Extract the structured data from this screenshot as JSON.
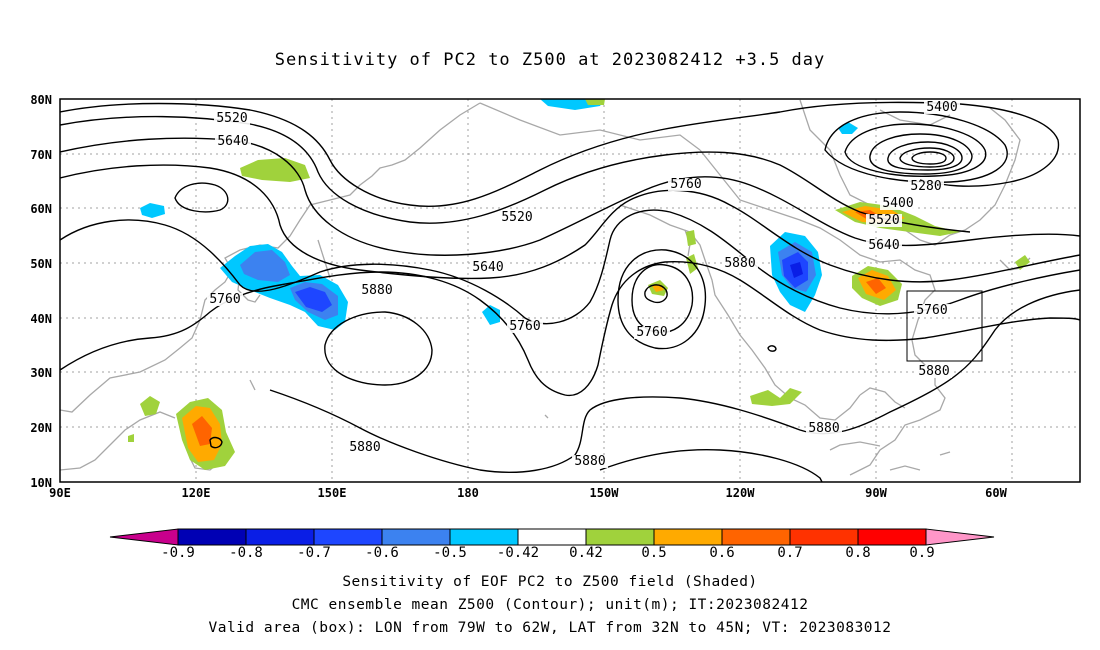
{
  "title": "Sensitivity of PC2 to Z500 at 2023082412 +3.5 day",
  "lat_labels": [
    "80N",
    "70N",
    "60N",
    "50N",
    "40N",
    "30N",
    "20N",
    "10N"
  ],
  "lon_labels": [
    "90E",
    "120E",
    "150E",
    "180",
    "150W",
    "120W",
    "90W",
    "60W"
  ],
  "colorbar": {
    "labels": [
      "-0.9",
      "-0.8",
      "-0.7",
      "-0.6",
      "-0.5",
      "-0.42",
      "0.42",
      "0.5",
      "0.6",
      "0.7",
      "0.8",
      "0.9"
    ],
    "colors": [
      "#c8008c",
      "#0000b4",
      "#0a1ee6",
      "#1e46ff",
      "#3c82f0",
      "#00c8ff",
      "#ffffff",
      "#a0d23c",
      "#ffaa00",
      "#ff6400",
      "#ff3200",
      "#ff0000",
      "#ff96c8"
    ]
  },
  "contour_labels": [
    {
      "text": "5520"
    },
    {
      "text": "5640"
    },
    {
      "text": "5520"
    },
    {
      "text": "5640"
    },
    {
      "text": "5760"
    },
    {
      "text": "5760"
    },
    {
      "text": "5880"
    },
    {
      "text": "5760"
    },
    {
      "text": "5760"
    },
    {
      "text": "5880"
    },
    {
      "text": "5880"
    },
    {
      "text": "5880"
    },
    {
      "text": "5400"
    },
    {
      "text": "5280"
    },
    {
      "text": "5400"
    },
    {
      "text": "5520"
    },
    {
      "text": "5640"
    },
    {
      "text": "5760"
    },
    {
      "text": "5880"
    },
    {
      "text": "5880"
    }
  ],
  "footer": {
    "line1": "Sensitivity of EOF PC2 to Z500 field (Shaded)",
    "line2": "CMC ensemble mean Z500 (Contour); unit(m); IT:2023082412",
    "line3": "Valid area (box): LON from 79W to 62W, LAT from 32N to 45N; VT: 2023083012"
  }
}
